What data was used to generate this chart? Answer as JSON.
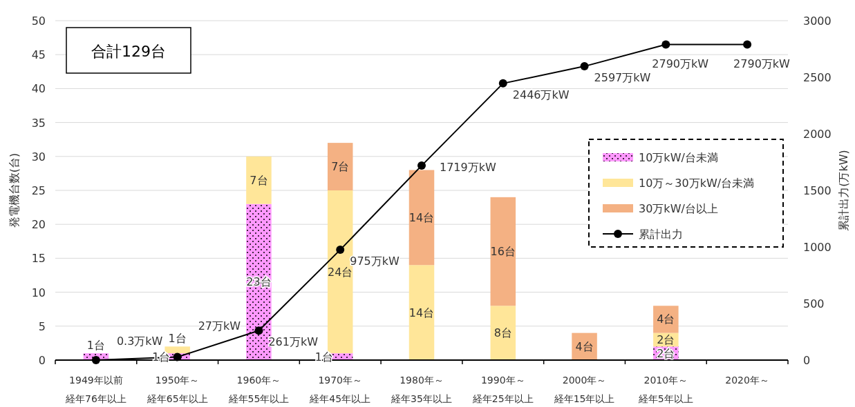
{
  "chart_data": {
    "type": "bar",
    "stacked": true,
    "categories": [
      "1949年以前",
      "1950年～",
      "1960年～",
      "1970年～",
      "1980年～",
      "1990年～",
      "2000年～",
      "2010年～",
      "2020年～"
    ],
    "ylabel": "発電機台数(台)",
    "y2label": "累計出力(万kW)",
    "ylim": [
      0,
      50
    ],
    "yticks": [
      0,
      5,
      10,
      15,
      20,
      25,
      30,
      35,
      40,
      45,
      50
    ],
    "y2lim": [
      0,
      3000
    ],
    "y2ticks": [
      0,
      500,
      1000,
      1500,
      2000,
      2500,
      3000
    ],
    "grid": "y",
    "legend": "right",
    "annotations": [
      "合計129台",
      "経年76年以上",
      "経年65年以上",
      "経年55年以上",
      "経年45年以上",
      "経年35年以上",
      "経年25年以上",
      "経年15年以上",
      "経年5年以上"
    ],
    "series": [
      {
        "name": "10万kW/台未満",
        "color": "#ff99ff",
        "values": [
          1,
          1,
          23,
          1,
          0,
          0,
          0,
          2,
          0
        ],
        "value_labels": [
          "1台",
          "1台",
          "23台",
          "1台",
          null,
          null,
          null,
          "2台",
          null
        ]
      },
      {
        "name": "10万～30万kW/台未満",
        "color": "#ffe699",
        "values": [
          0,
          1,
          7,
          24,
          14,
          8,
          0,
          2,
          0
        ],
        "value_labels": [
          null,
          "1台",
          "7台",
          "24台",
          "14台",
          "8台",
          null,
          "2台",
          null
        ]
      },
      {
        "name": "30万kW/台以上",
        "color": "#f4b183",
        "values": [
          0,
          0,
          0,
          7,
          14,
          16,
          4,
          4,
          0
        ],
        "value_labels": [
          null,
          null,
          null,
          "7台",
          "14台",
          "16台",
          "4台",
          "4台",
          null
        ]
      },
      {
        "name": "累計出力",
        "type": "line",
        "axis": "y2",
        "color": "#000000",
        "marker": "circle",
        "values": [
          0.3,
          27,
          261,
          975,
          1719,
          2446,
          2597,
          2790,
          2790
        ],
        "value_labels": [
          "0.3万kW",
          "27万kW",
          "261万kW",
          "975万kW",
          "1719万kW",
          "2446万kW",
          "2597万kW",
          "2790万kW",
          "2790万kW"
        ]
      }
    ]
  }
}
